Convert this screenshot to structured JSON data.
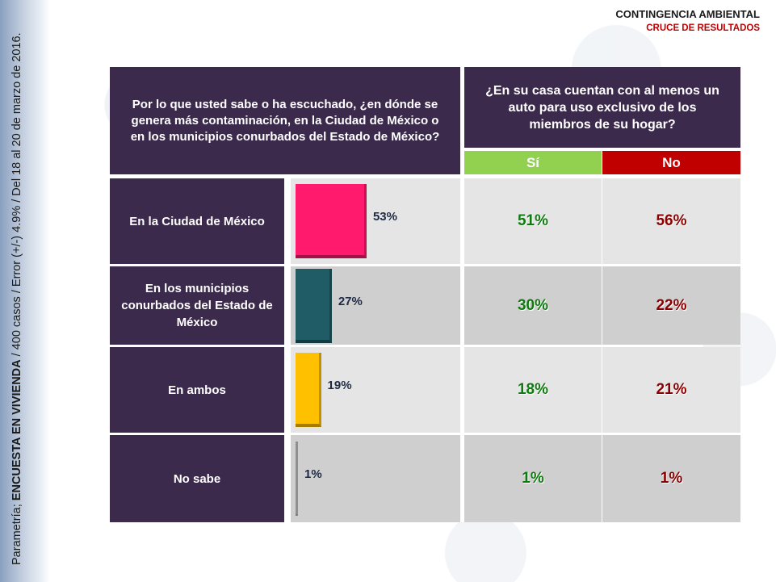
{
  "header": {
    "title": "CONTINGENCIA AMBIENTAL",
    "subtitle": "CRUCE DE RESULTADOS"
  },
  "side_note": {
    "prefix": "Parametría; ",
    "bold": "ENCUESTA EN VIVIENDA",
    "suffix": " / 400 casos / Error (+/-) 4.9% / Del 18 al 20 de marzo de 2016."
  },
  "question_left": "Por lo que usted sabe o ha escuchado, ¿en dónde se genera más contaminación, en la Ciudad de México o en los municipios conurbados del Estado de México?",
  "question_right": "¿En su casa cuentan con al menos un auto para uso exclusivo de los miembros de su hogar?",
  "columns": {
    "si": "Sí",
    "no": "No"
  },
  "colors": {
    "panel": "#3c2a4d",
    "si_header": "#92d050",
    "no_header": "#c00000",
    "si_text": "#0f7a0f",
    "no_text": "#8b0000"
  },
  "chart_data": {
    "type": "bar",
    "orientation": "horizontal",
    "categories": [
      "En la Ciudad de México",
      "En los municipios conurbados del Estado de México",
      "En ambos",
      "No sabe"
    ],
    "values": [
      53,
      27,
      19,
      1
    ],
    "value_labels": [
      "53%",
      "27%",
      "19%",
      "1%"
    ],
    "bar_colors": [
      "#ff1a6e",
      "#1f5c66",
      "#ffc000",
      "#bfbfbf"
    ],
    "xlim": [
      0,
      100
    ],
    "table": {
      "si": [
        "51%",
        "30%",
        "18%",
        "1%"
      ],
      "no": [
        "56%",
        "22%",
        "21%",
        "1%"
      ]
    }
  }
}
